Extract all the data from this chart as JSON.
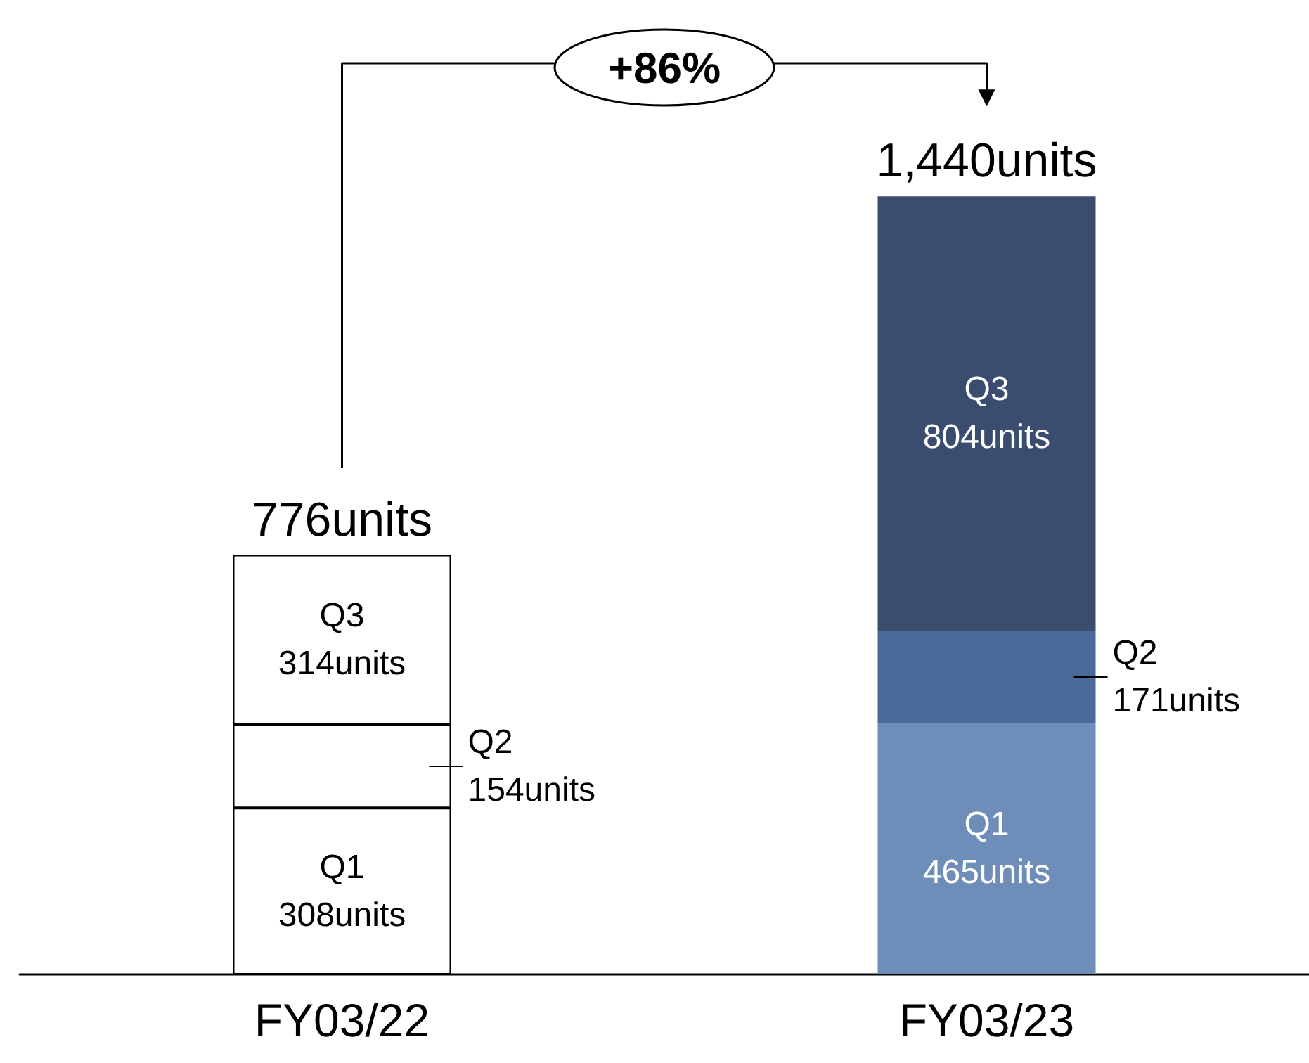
{
  "chart_data": {
    "type": "bar",
    "stacked": true,
    "categories": [
      "FY03/22",
      "FY03/23"
    ],
    "series": [
      {
        "name": "Q1",
        "colors": [
          "#ffffff",
          "#6f8db9"
        ],
        "values": [
          308,
          465
        ],
        "value_labels": [
          "308units",
          "465units"
        ]
      },
      {
        "name": "Q2",
        "colors": [
          "#ffffff",
          "#4a6a9a"
        ],
        "values": [
          154,
          171
        ],
        "value_labels": [
          "154units",
          "171units"
        ]
      },
      {
        "name": "Q3",
        "colors": [
          "#ffffff",
          "#3a4d6e"
        ],
        "values": [
          314,
          804
        ],
        "value_labels": [
          "314units",
          "804units"
        ]
      }
    ],
    "totals": [
      "776units",
      "1,440units"
    ],
    "annotations": [
      "+86%"
    ]
  }
}
